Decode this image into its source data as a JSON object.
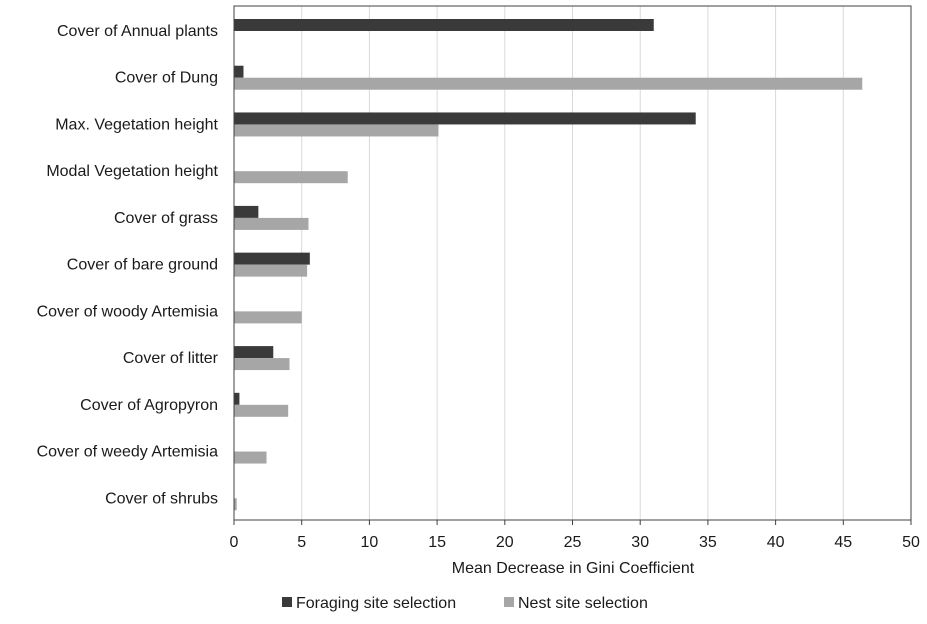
{
  "chart_data": {
    "type": "bar",
    "orientation": "horizontal",
    "title": "",
    "xlabel": "Mean Decrease in Gini Coefficient",
    "ylabel": "",
    "xlim": [
      0,
      50
    ],
    "x_ticks": [
      0,
      5,
      10,
      15,
      20,
      25,
      30,
      35,
      40,
      45,
      50
    ],
    "grid": "vertical",
    "legend_position": "bottom",
    "categories": [
      "Cover of Annual plants",
      "Cover of Dung",
      "Max. Vegetation height",
      "Modal Vegetation height",
      "Cover of grass",
      "Cover of bare ground",
      "Cover of woody Artemisia",
      "Cover of litter",
      "Cover of Agropyron",
      "Cover of weedy Artemisia",
      "Cover of shrubs"
    ],
    "series": [
      {
        "name": "Foraging site selection",
        "color": "#3a3a3a",
        "values": [
          31.0,
          0.7,
          34.1,
          0,
          1.8,
          5.6,
          0,
          2.9,
          0.4,
          0,
          0
        ]
      },
      {
        "name": "Nest site selection",
        "color": "#a6a6a6",
        "values": [
          0,
          46.4,
          15.1,
          8.4,
          5.5,
          5.4,
          5.0,
          4.1,
          4.0,
          2.4,
          0.2
        ]
      }
    ]
  }
}
